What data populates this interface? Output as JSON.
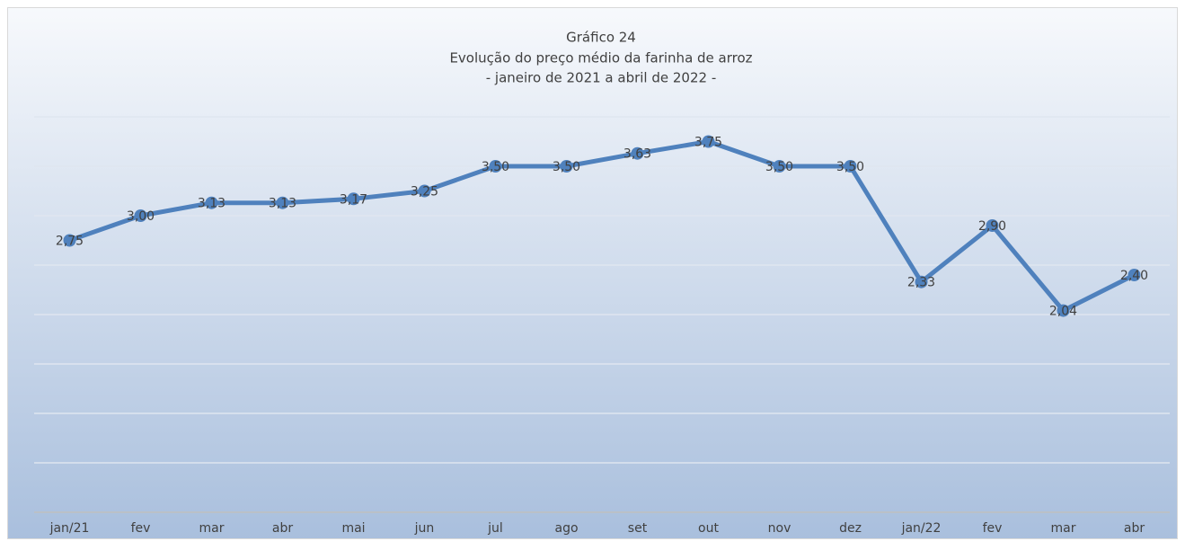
{
  "chart_data": {
    "type": "line",
    "title": "Gráfico 24",
    "subtitle": "Evolução do preço médio da farinha de arroz",
    "subtitle2": "- janeiro de 2021 a abril de 2022 -",
    "categories": [
      "jan/21",
      "fev",
      "mar",
      "abr",
      "mai",
      "jun",
      "jul",
      "ago",
      "set",
      "out",
      "nov",
      "dez",
      "jan/22",
      "fev",
      "mar",
      "abr"
    ],
    "series": [
      {
        "name": "Preço médio",
        "color": "#4f81bd",
        "values": [
          2.75,
          3.0,
          3.13,
          3.13,
          3.17,
          3.25,
          3.5,
          3.5,
          3.63,
          3.75,
          3.5,
          3.5,
          2.33,
          2.9,
          2.04,
          2.4
        ],
        "value_labels": [
          "2,75",
          "3,00",
          "3,13",
          "3,13",
          "3,17",
          "3,25",
          "3,50",
          "3,50",
          "3,63",
          "3,75",
          "3,50",
          "3,50",
          "2,33",
          "2,90",
          "2,04",
          "2,40"
        ]
      }
    ],
    "ylim": [
      0,
      4
    ],
    "yticks": [
      0,
      0.5,
      1,
      1.5,
      2,
      2.5,
      3,
      3.5,
      4
    ],
    "grid": true
  }
}
